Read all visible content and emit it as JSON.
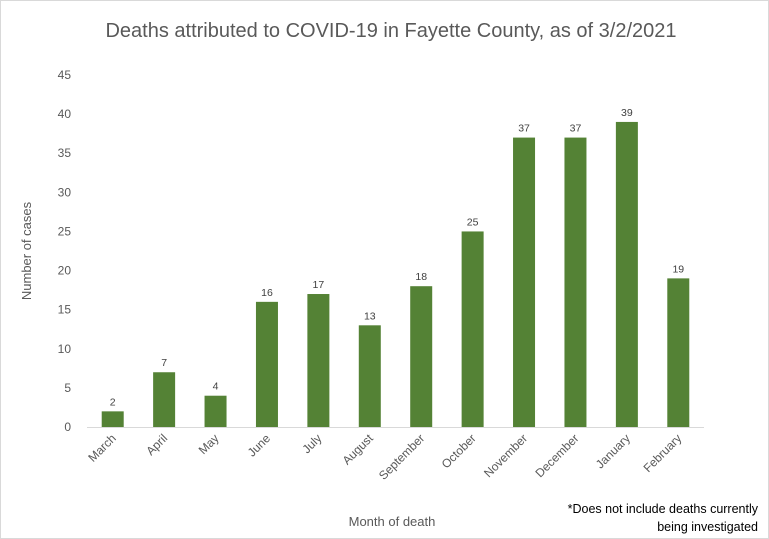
{
  "chart_data": {
    "type": "bar",
    "title": "Deaths attributed to COVID-19 in Fayette County, as of 3/2/2021",
    "xlabel": "Month of death",
    "ylabel": "Number  of cases",
    "categories": [
      "March",
      "April",
      "May",
      "June",
      "July",
      "August",
      "September",
      "October",
      "November",
      "December",
      "January",
      "February"
    ],
    "values": [
      2,
      7,
      4,
      16,
      17,
      13,
      18,
      25,
      37,
      37,
      39,
      19
    ],
    "ylim": [
      0,
      45
    ],
    "yticks": [
      0,
      5,
      10,
      15,
      20,
      25,
      30,
      35,
      40,
      45
    ],
    "grid": false,
    "data_labels": true,
    "bar_color": "#548235"
  },
  "footnote": "*Does not include deaths currently being investigated"
}
